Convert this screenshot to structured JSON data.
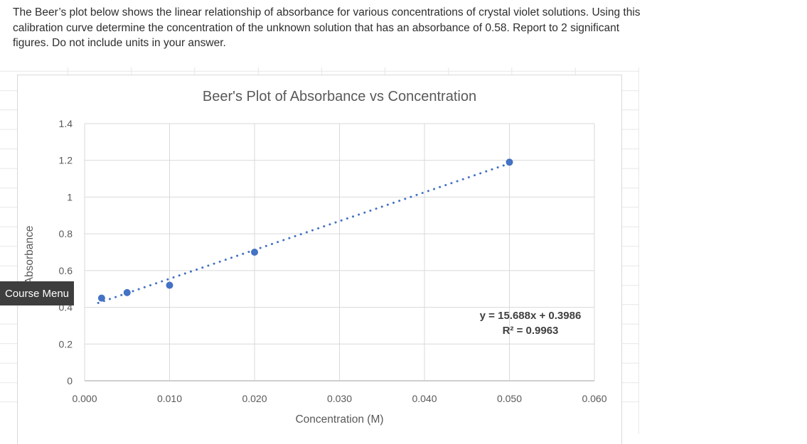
{
  "question": {
    "lines": [
      "The Beer’s plot below shows the linear relationship of absorbance for various concentrations of crystal violet solutions. Using this",
      "calibration curve determine the concentration of the unknown solution that has an absorbance of 0.58. Report to 2 significant",
      "figures. Do not include units in your answer."
    ]
  },
  "course_menu": {
    "label": "Course Menu"
  },
  "chart_data": {
    "type": "scatter",
    "title": "Beer's Plot of Absorbance vs Concentration",
    "xlabel": "Concentration (M)",
    "ylabel": "Absorbance",
    "xlim": [
      0,
      0.06
    ],
    "ylim": [
      0,
      1.4
    ],
    "x_ticks": [
      "0.000",
      "0.010",
      "0.020",
      "0.030",
      "0.040",
      "0.050",
      "0.060"
    ],
    "y_ticks": [
      "0",
      "0.2",
      "0.4",
      "0.6",
      "0.8",
      "1",
      "1.2",
      "1.4"
    ],
    "grid": true,
    "legend_position": "none",
    "points": [
      {
        "x": 0.002,
        "y": 0.45
      },
      {
        "x": 0.005,
        "y": 0.48
      },
      {
        "x": 0.01,
        "y": 0.52
      },
      {
        "x": 0.02,
        "y": 0.7
      },
      {
        "x": 0.05,
        "y": 1.19
      }
    ],
    "trendline": {
      "slope": 15.688,
      "intercept": 0.3986,
      "x_start": 0.0016,
      "x_end": 0.0505,
      "style": "dotted",
      "equation_label": "y = 15.688x + 0.3986",
      "r_squared_label": "R² = 0.9963"
    },
    "colors": {
      "marker": "#4472c4",
      "trendline": "#4472c4",
      "gridline": "#d9d9d9",
      "axis_line": "#bfbfbf",
      "text": "#595959",
      "equation_text": "#3f3f3f"
    }
  }
}
